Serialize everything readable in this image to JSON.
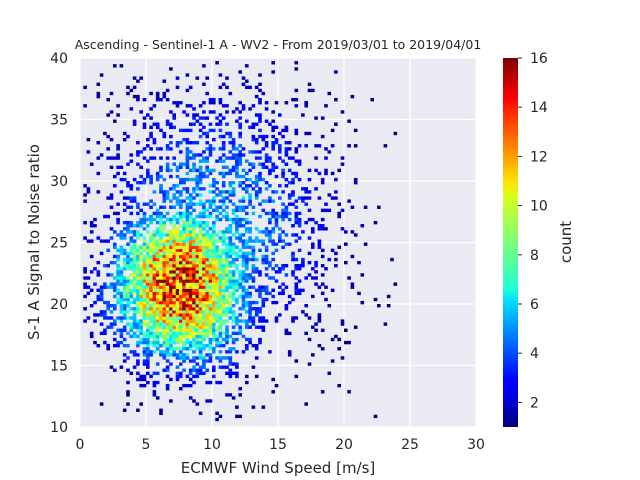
{
  "chart_data": {
    "type": "heatmap",
    "title": "Ascending - Sentinel-1 A - WV2 - From 2019/03/01 to 2019/04/01",
    "xlabel": "ECMWF Wind Speed [m/s]",
    "ylabel": "S-1 A Signal to Noise ratio",
    "xlim": [
      0,
      30
    ],
    "ylim": [
      10,
      40
    ],
    "xticks": [
      "0",
      "5",
      "10",
      "15",
      "20",
      "25",
      "30"
    ],
    "yticks": [
      "10",
      "15",
      "20",
      "25",
      "30",
      "35",
      "40"
    ],
    "colorbar": {
      "label": "count",
      "range": [
        1,
        16
      ],
      "ticks": [
        "2",
        "4",
        "6",
        "8",
        "10",
        "12",
        "14",
        "16"
      ],
      "colormap": "jet"
    },
    "grid": true,
    "density_peak": {
      "x": 7.5,
      "y": 21.5,
      "max_count": 16
    },
    "x_bin_width": 0.25,
    "y_bin_width": 0.25
  },
  "colors": {
    "plot_background": "#eaeaf2",
    "grid": "#ffffff",
    "text": "#262626"
  }
}
